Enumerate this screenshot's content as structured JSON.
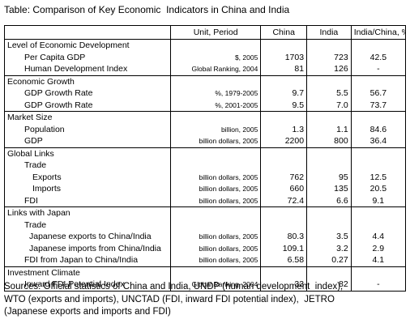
{
  "title": "Table: Comparison of Key Economic  Indicators in China and India",
  "headers": {
    "label": "",
    "unit": "Unit, Period",
    "china": "China",
    "india": "India",
    "ratio": "India/China, %"
  },
  "rows": [
    {
      "label": "Level of Economic Development",
      "unit": "",
      "china": "",
      "india": "",
      "ratio": ""
    },
    {
      "label": "Per Capita GDP",
      "unit": "$, 2005",
      "china": "1703",
      "india": "723",
      "ratio": "42.5"
    },
    {
      "label": "Human Development Index",
      "unit": "Global Ranking, 2004",
      "china": "81",
      "india": "126",
      "ratio": "-"
    },
    {
      "label": "Economic Growth",
      "unit": "",
      "china": "",
      "india": "",
      "ratio": ""
    },
    {
      "label": "GDP Growth Rate",
      "unit": "%, 1979-2005",
      "china": "9.7",
      "india": "5.5",
      "ratio": "56.7"
    },
    {
      "label": "GDP Growth Rate",
      "unit": "%, 2001-2005",
      "china": "9.5",
      "india": "7.0",
      "ratio": "73.7"
    },
    {
      "label": "Market Size",
      "unit": "",
      "china": "",
      "india": "",
      "ratio": ""
    },
    {
      "label": "Population",
      "unit": "billion, 2005",
      "china": "1.3",
      "india": "1.1",
      "ratio": "84.6"
    },
    {
      "label": "GDP",
      "unit": "billion dollars, 2005",
      "china": "2200",
      "india": "800",
      "ratio": "36.4"
    },
    {
      "label": "Global Links",
      "unit": "",
      "china": "",
      "india": "",
      "ratio": ""
    },
    {
      "label": "Trade",
      "unit": "",
      "china": "",
      "india": "",
      "ratio": ""
    },
    {
      "label": "Exports",
      "unit": "billion dollars, 2005",
      "china": "762",
      "india": "95",
      "ratio": "12.5"
    },
    {
      "label": "Imports",
      "unit": "billion dollars, 2005",
      "china": "660",
      "india": "135",
      "ratio": "20.5"
    },
    {
      "label": "FDI",
      "unit": "billion dollars, 2005",
      "china": "72.4",
      "india": "6.6",
      "ratio": "9.1"
    },
    {
      "label": "Links with Japan",
      "unit": "",
      "china": "",
      "india": "",
      "ratio": ""
    },
    {
      "label": "Trade",
      "unit": "",
      "china": "",
      "india": "",
      "ratio": ""
    },
    {
      "label": "Japanese exports to China/India",
      "unit": "billion dollars, 2005",
      "china": "80.3",
      "india": "3.5",
      "ratio": "4.4"
    },
    {
      "label": "Japanese imports from China/India",
      "unit": "billion dollars, 2005",
      "china": "109.1",
      "india": "3.2",
      "ratio": "2.9"
    },
    {
      "label": "FDI from Japan to China/India",
      "unit": "billion dollars, 2005",
      "china": "6.58",
      "india": "0.27",
      "ratio": "4.1"
    },
    {
      "label": "Investment Climate",
      "unit": "",
      "china": "",
      "india": "",
      "ratio": ""
    },
    {
      "label": "Inward FDI Potential Index",
      "unit": "Global Ranking, 2004",
      "china": "33",
      "india": "82",
      "ratio": "-"
    }
  ],
  "sources": [
    "Sources: Official statistics of China and India, UNDP (human development  index),",
    "WTO (exports and imports), UNCTAD (FDI, inward FDI potential index),  JETRO",
    "(Japanese exports and imports and FDI)"
  ]
}
